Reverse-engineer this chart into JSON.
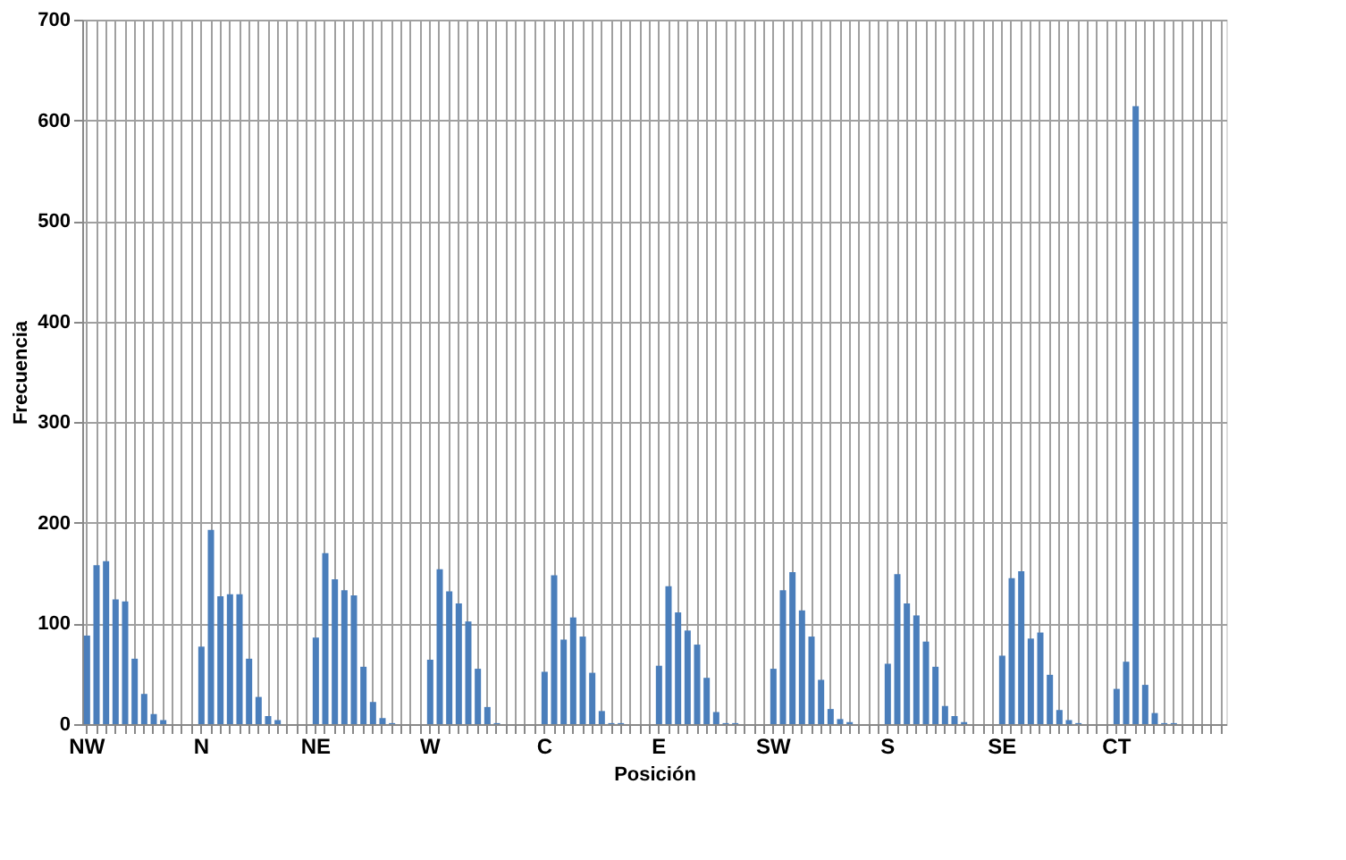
{
  "chart_data": {
    "type": "bar",
    "xlabel": "Posición",
    "ylabel": "Frecuencia",
    "categories": [
      "NW",
      null,
      null,
      null,
      null,
      null,
      null,
      null,
      null,
      null,
      null,
      null,
      "N",
      null,
      null,
      null,
      null,
      null,
      null,
      null,
      null,
      null,
      null,
      null,
      "NE",
      null,
      null,
      null,
      null,
      null,
      null,
      null,
      null,
      null,
      null,
      null,
      "W",
      null,
      null,
      null,
      null,
      null,
      null,
      null,
      null,
      null,
      null,
      null,
      "C",
      null,
      null,
      null,
      null,
      null,
      null,
      null,
      null,
      null,
      null,
      null,
      "E",
      null,
      null,
      null,
      null,
      null,
      null,
      null,
      null,
      null,
      null,
      null,
      "SW",
      null,
      null,
      null,
      null,
      null,
      null,
      null,
      null,
      null,
      null,
      null,
      "S",
      null,
      null,
      null,
      null,
      null,
      null,
      null,
      null,
      null,
      null,
      null,
      "SE",
      null,
      null,
      null,
      null,
      null,
      null,
      null,
      null,
      null,
      null,
      null,
      "CT",
      null,
      null,
      null,
      null,
      null,
      null,
      null,
      null,
      null,
      null,
      null
    ],
    "values": [
      88,
      158,
      162,
      124,
      122,
      65,
      30,
      10,
      4,
      null,
      null,
      null,
      77,
      193,
      127,
      129,
      129,
      65,
      27,
      8,
      4,
      null,
      null,
      null,
      86,
      170,
      144,
      133,
      128,
      57,
      22,
      6,
      1,
      null,
      null,
      null,
      64,
      154,
      132,
      120,
      102,
      55,
      17,
      1,
      null,
      null,
      null,
      null,
      52,
      148,
      84,
      106,
      87,
      51,
      13,
      1,
      1,
      null,
      null,
      null,
      58,
      137,
      111,
      93,
      79,
      46,
      12,
      1,
      1,
      null,
      null,
      null,
      55,
      133,
      151,
      113,
      87,
      44,
      15,
      5,
      2,
      null,
      null,
      null,
      60,
      149,
      120,
      108,
      82,
      57,
      18,
      8,
      2,
      null,
      null,
      null,
      68,
      145,
      152,
      85,
      91,
      49,
      14,
      4,
      1,
      null,
      null,
      null,
      35,
      62,
      614,
      39,
      11,
      1,
      1,
      null,
      null,
      null,
      null,
      null
    ],
    "color": "#4a7ebb",
    "ylim": [
      0,
      700
    ],
    "yticks": [
      0,
      100,
      200,
      300,
      400,
      500,
      600,
      700
    ],
    "grid": true
  }
}
